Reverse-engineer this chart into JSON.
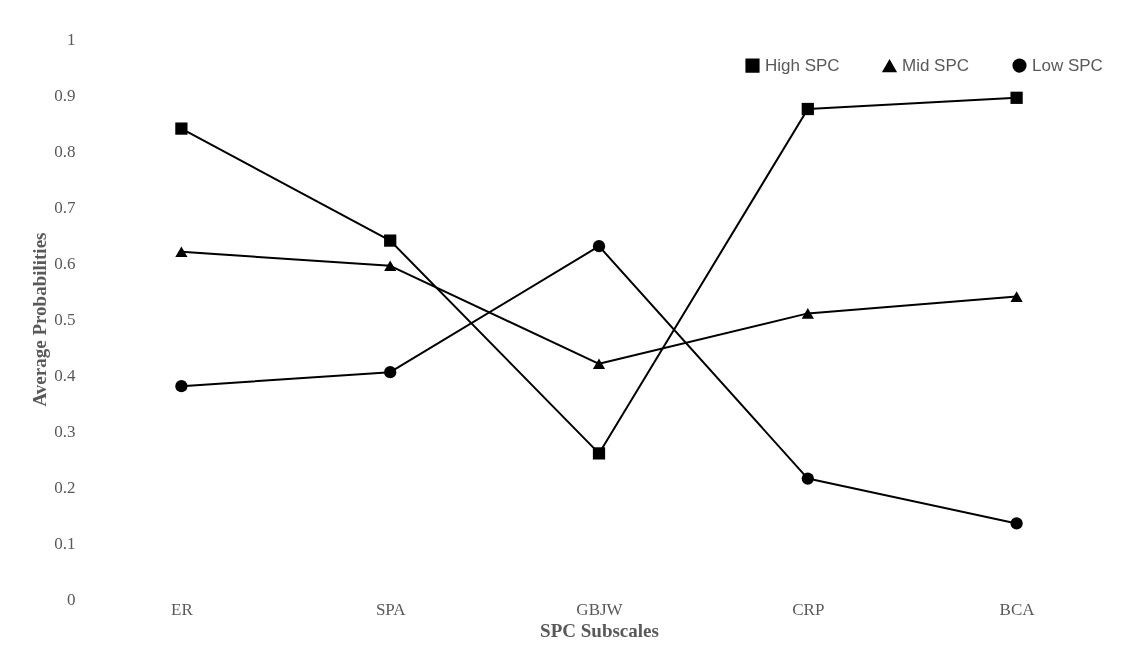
{
  "chart_data": {
    "type": "line",
    "xlabel": "SPC Subscales",
    "ylabel": "Average Probabilities",
    "categories": [
      "ER",
      "SPA",
      "GBJW",
      "CRP",
      "BCA"
    ],
    "series": [
      {
        "name": "High SPC",
        "color": "#000000",
        "marker": "square",
        "values": [
          0.84,
          0.64,
          0.26,
          0.875,
          0.895
        ]
      },
      {
        "name": "Mid SPC",
        "color": "#000000",
        "marker": "triangle",
        "values": [
          0.62,
          0.595,
          0.42,
          0.51,
          0.54
        ]
      },
      {
        "name": "Low SPC",
        "color": "#000000",
        "marker": "circle",
        "values": [
          0.38,
          0.405,
          0.63,
          0.215,
          0.135
        ]
      }
    ],
    "ylim": [
      0,
      1
    ],
    "yticks": [
      0,
      0.1,
      0.2,
      0.3,
      0.4,
      0.5,
      0.6,
      0.7,
      0.8,
      0.9,
      1
    ],
    "grid": false,
    "legend": "top right",
    "line_style": "solid"
  }
}
